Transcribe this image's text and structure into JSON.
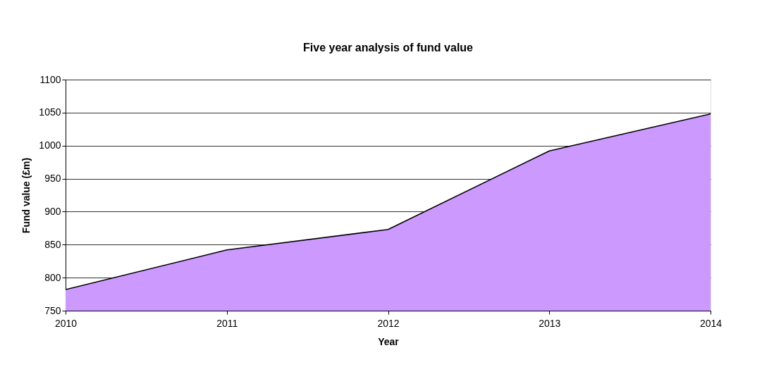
{
  "chart_data": {
    "type": "area",
    "title": "Five year analysis of fund value",
    "xlabel": "Year",
    "ylabel": "Fund value (£m)",
    "categories": [
      "2010",
      "2011",
      "2012",
      "2013",
      "2014"
    ],
    "series": [
      {
        "color": "#cc99ff",
        "values": [
          782,
          842,
          873,
          992,
          1048
        ]
      }
    ],
    "ylim": [
      750,
      1100
    ],
    "yticks": [
      750,
      800,
      850,
      900,
      950,
      1000,
      1050,
      1100
    ],
    "grid": "y"
  }
}
